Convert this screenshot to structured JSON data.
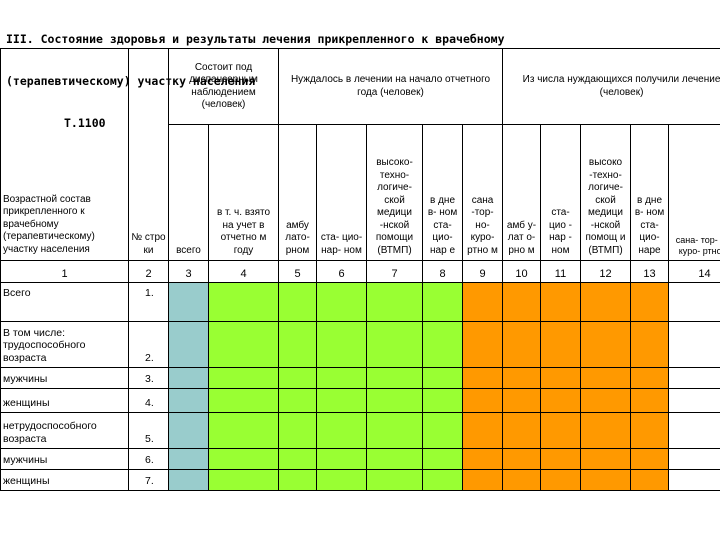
{
  "title": {
    "line1": "III. Состояние здоровья и результаты лечения прикрепленного к врачебному",
    "line2": "(терапевтическому) участку населения",
    "line3": "Т.1100"
  },
  "headers": {
    "group_dispensary": "Состоит под диспансерным наблюдением (человек)",
    "group_needed": "Нуждалось в лечении на начало отчетного года (человек)",
    "group_received": "Из числа нуждающихся получили лечение (человек)",
    "age_composition": "Возрастной состав прикрепленного к врачебному (терапевтическому) участку населения",
    "row_number": "№ стро ки",
    "total": "всего",
    "taken_this_year": "в т. ч. взято на учет в отчетно м году",
    "needed_ambulatory": "амбу лато- рном",
    "needed_inpatient": "ста- цио- нар- ном",
    "needed_hightech": "высоко- техно- логиче- ской медици -нской помощи (ВТМП)",
    "needed_dayhospital": "в дне в- ном ста- цио- нар е",
    "needed_sanatorium": "сана -тор- но- куро- ртно м",
    "received_ambulatory": "амб у- лат о- рно м",
    "received_inpatient": "ста- цио - нар - ном",
    "received_hightech": "высоко -техно- логиче- ской медици -нской помощ и (ВТМП)",
    "received_dayhospital": "в дне в- ном ста- цио- наре",
    "received_sanatorium": "сана- тор- но- куро- ртно м"
  },
  "column_numbers": [
    "1",
    "2",
    "3",
    "4",
    "5",
    "6",
    "7",
    "8",
    "9",
    "10",
    "11",
    "12",
    "13",
    "14"
  ],
  "rows": [
    {
      "label": "Всего",
      "num": "1."
    },
    {
      "label": "В том числе: трудоспособного возраста",
      "num": "2."
    },
    {
      "label": "мужчины",
      "num": "3."
    },
    {
      "label": "женщины",
      "num": "4."
    },
    {
      "label": "нетрудоспособного возраста",
      "num": "5."
    },
    {
      "label": "мужчины",
      "num": "6."
    },
    {
      "label": "женщины",
      "num": "7."
    }
  ],
  "colors": {
    "dispensary": "#99cccc",
    "needed": "#99ff33",
    "received": "#ff9900"
  }
}
